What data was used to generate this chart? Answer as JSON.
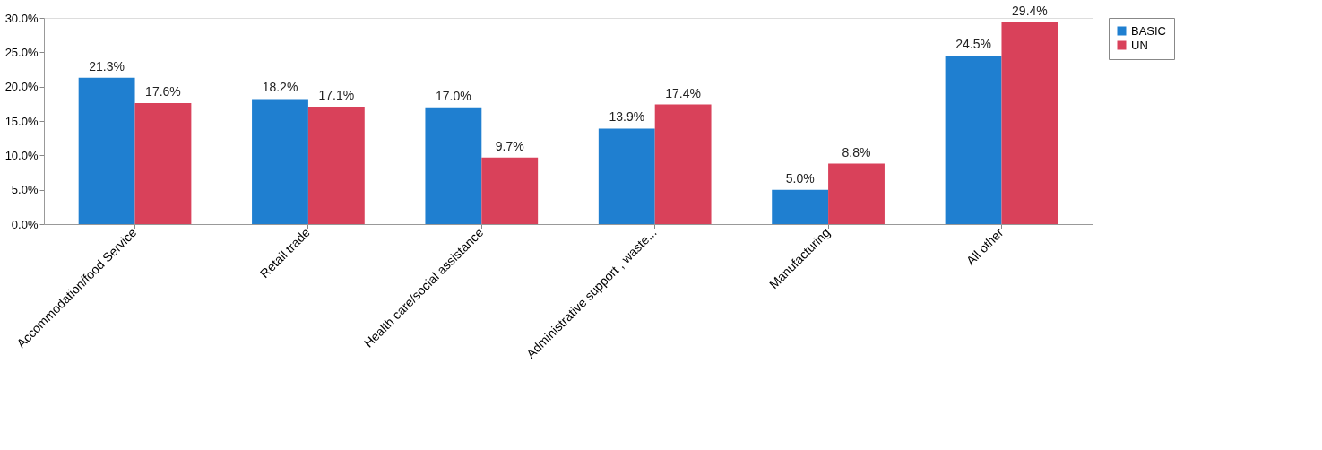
{
  "chart_data": {
    "type": "bar",
    "categories": [
      "Accommodation/food Service",
      "Retail trade",
      "Health care/social assistance",
      "Administrative support , waste...",
      "Manufacturing",
      "All other"
    ],
    "series": [
      {
        "name": "BASIC",
        "color": "#1f7fd0",
        "values": [
          21.3,
          18.2,
          17.0,
          13.9,
          5.0,
          24.5
        ],
        "value_labels": [
          "21.3%",
          "18.2%",
          "17.0%",
          "13.9%",
          "5.0%",
          "24.5%"
        ]
      },
      {
        "name": "UN",
        "color": "#d9415a",
        "values": [
          17.6,
          17.1,
          9.7,
          17.4,
          8.8,
          29.4
        ],
        "value_labels": [
          "17.6%",
          "17.1%",
          "9.7%",
          "17.4%",
          "8.8%",
          "29.4%"
        ]
      }
    ],
    "ylim": [
      0,
      30
    ],
    "yticks": [
      {
        "value": 0,
        "label": "0.0%"
      },
      {
        "value": 5,
        "label": "5.0%"
      },
      {
        "value": 10,
        "label": "10.0%"
      },
      {
        "value": 15,
        "label": "15.0%"
      },
      {
        "value": 20,
        "label": "20.0%"
      },
      {
        "value": 25,
        "label": "25.0%"
      },
      {
        "value": 30,
        "label": "30.0%"
      }
    ],
    "grid": false,
    "legend": "right"
  }
}
